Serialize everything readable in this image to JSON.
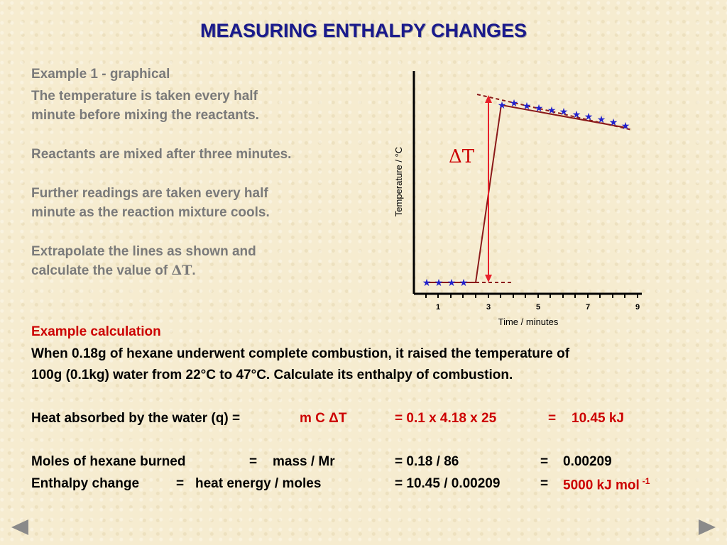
{
  "title": "MEASURING ENTHALPY CHANGES",
  "intro": {
    "heading": "Example 1 - graphical",
    "line1": "The temperature is taken every half",
    "line2": "minute before mixing the reactants.",
    "line3": "Reactants are mixed after three minutes.",
    "line4": "Further readings are taken every half",
    "line5": "minute as the reaction mixture cools.",
    "line6": "Extrapolate the lines as shown and",
    "line7_prefix": "calculate the value of ",
    "line7_delta": "ΔT",
    "line7_suffix": "."
  },
  "graph": {
    "ylabel": "Temperature / °C",
    "xlabel": "Time / minutes",
    "xticks": [
      "1",
      "3",
      "5",
      "7",
      "9"
    ],
    "delta_label": "ΔT"
  },
  "calc": {
    "heading": "Example calculation",
    "problem1": "When 0.18g of hexane underwent complete combustion, it raised the temperature of",
    "problem2": "100g (0.1kg) water from 22°C to 47°C. Calculate its enthalpy of combustion.",
    "heat_label": "Heat absorbed by the water (q)  =",
    "heat_formula": "m C ΔT",
    "heat_eq1": "=  0.1 x  4.18  x  25",
    "heat_eq2": "=",
    "heat_result": "10.45 kJ",
    "moles_label": "Moles of hexane burned",
    "moles_eq": "=",
    "moles_formula": "mass / Mr",
    "moles_calc": "=   0.18 / 86",
    "moles_eq2": "=",
    "moles_result": "0.00209",
    "enth_label": "Enthalpy change",
    "enth_eq": "=",
    "enth_formula": "heat energy / moles",
    "enth_calc": "=  10.45 / 0.00209",
    "enth_eq2": "=",
    "enth_result": "5000 kJ mol",
    "enth_sup": "-1"
  },
  "nav": {
    "prev_icon": "left-arrow-icon",
    "next_icon": "right-arrow-icon"
  }
}
